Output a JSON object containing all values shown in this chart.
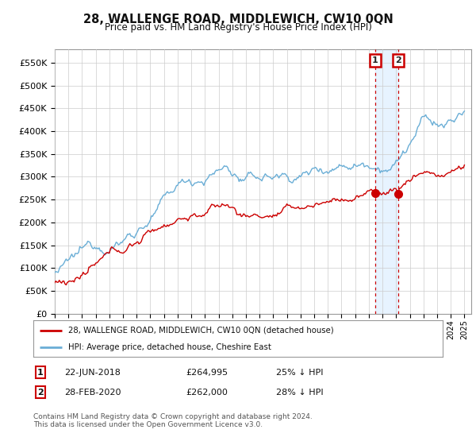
{
  "title": "28, WALLENGE ROAD, MIDDLEWICH, CW10 0QN",
  "subtitle": "Price paid vs. HM Land Registry's House Price Index (HPI)",
  "ylabel_ticks": [
    "£0",
    "£50K",
    "£100K",
    "£150K",
    "£200K",
    "£250K",
    "£300K",
    "£350K",
    "£400K",
    "£450K",
    "£500K",
    "£550K"
  ],
  "ytick_vals": [
    0,
    50000,
    100000,
    150000,
    200000,
    250000,
    300000,
    350000,
    400000,
    450000,
    500000,
    550000
  ],
  "ylim": [
    0,
    580000
  ],
  "xlim_start": 1995.0,
  "xlim_end": 2025.5,
  "hpi_color": "#6aaed6",
  "price_color": "#cc0000",
  "vline_color": "#cc0000",
  "shade_color": "#ddeeff",
  "sale1_x": 2018.47,
  "sale1_y": 264995,
  "sale2_x": 2020.16,
  "sale2_y": 262000,
  "sale1_label": "22-JUN-2018",
  "sale1_price": "£264,995",
  "sale1_pct": "25% ↓ HPI",
  "sale2_label": "28-FEB-2020",
  "sale2_price": "£262,000",
  "sale2_pct": "28% ↓ HPI",
  "legend_line1": "28, WALLENGE ROAD, MIDDLEWICH, CW10 0QN (detached house)",
  "legend_line2": "HPI: Average price, detached house, Cheshire East",
  "footnote": "Contains HM Land Registry data © Crown copyright and database right 2024.\nThis data is licensed under the Open Government Licence v3.0.",
  "background_color": "#ffffff",
  "grid_color": "#cccccc"
}
